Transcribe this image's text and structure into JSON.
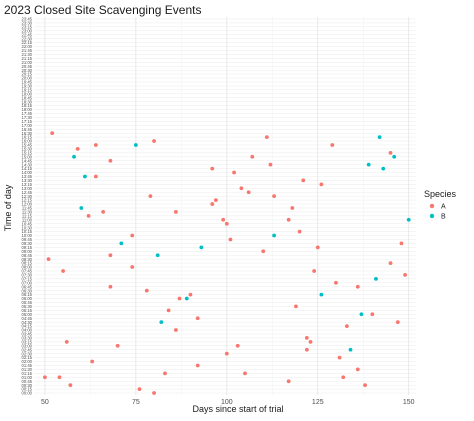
{
  "chart_data": {
    "type": "scatter",
    "title": "2023 Closed Site Scavenging Events",
    "xlabel": "Days since start of trial",
    "ylabel": "Time of day",
    "xlim": [
      47,
      152
    ],
    "x_ticks": [
      50,
      75,
      100,
      125,
      150
    ],
    "grid": true,
    "legend": {
      "title": "Species",
      "placement": "right",
      "entries": [
        {
          "label": "A",
          "color": "#F8766D"
        },
        {
          "label": "B",
          "color": "#00BFC4"
        }
      ]
    },
    "y_categories": [
      "00:00",
      "00:15",
      "00:30",
      "00:45",
      "01:00",
      "01:15",
      "01:30",
      "01:45",
      "02:00",
      "02:15",
      "02:30",
      "02:45",
      "03:00",
      "03:15",
      "03:30",
      "03:45",
      "04:00",
      "04:15",
      "04:30",
      "04:45",
      "05:00",
      "05:15",
      "05:30",
      "05:45",
      "06:00",
      "06:15",
      "06:30",
      "06:45",
      "07:00",
      "07:15",
      "07:30",
      "07:45",
      "08:00",
      "08:15",
      "08:30",
      "08:45",
      "09:00",
      "09:15",
      "09:30",
      "09:45",
      "10:00",
      "10:15",
      "10:30",
      "10:45",
      "11:00",
      "11:15",
      "11:30",
      "11:45",
      "12:00",
      "12:15",
      "12:30",
      "12:45",
      "13:00",
      "13:15",
      "13:30",
      "13:45",
      "14:00",
      "14:15",
      "14:30",
      "14:45",
      "15:00",
      "15:15",
      "15:30",
      "15:45",
      "16:00",
      "16:15",
      "16:30",
      "16:45",
      "17:00",
      "17:15",
      "17:30",
      "17:45",
      "18:00",
      "18:15",
      "18:30",
      "18:45",
      "19:00",
      "19:15",
      "19:30",
      "19:45",
      "20:00",
      "20:15",
      "20:30",
      "20:45",
      "21:00",
      "21:15",
      "21:30",
      "21:45",
      "22:00",
      "22:15",
      "22:30",
      "22:45",
      "23:00",
      "23:15",
      "23:30",
      "23:45"
    ],
    "series": [
      {
        "name": "A",
        "points": [
          {
            "x": 80,
            "y": "00:00"
          },
          {
            "x": 76,
            "y": "00:15"
          },
          {
            "x": 138,
            "y": "00:30"
          },
          {
            "x": 57,
            "y": "00:30"
          },
          {
            "x": 117,
            "y": "00:45"
          },
          {
            "x": 54,
            "y": "01:00"
          },
          {
            "x": 132,
            "y": "01:00"
          },
          {
            "x": 50,
            "y": "01:00"
          },
          {
            "x": 83,
            "y": "01:15"
          },
          {
            "x": 105,
            "y": "01:15"
          },
          {
            "x": 136,
            "y": "01:30"
          },
          {
            "x": 92,
            "y": "01:45"
          },
          {
            "x": 63,
            "y": "02:00"
          },
          {
            "x": 131,
            "y": "02:15"
          },
          {
            "x": 100,
            "y": "02:30"
          },
          {
            "x": 122,
            "y": "02:45"
          },
          {
            "x": 70,
            "y": "03:00"
          },
          {
            "x": 103,
            "y": "03:00"
          },
          {
            "x": 123,
            "y": "03:15"
          },
          {
            "x": 56,
            "y": "03:15"
          },
          {
            "x": 122,
            "y": "03:30"
          },
          {
            "x": 86,
            "y": "04:00"
          },
          {
            "x": 133,
            "y": "04:15"
          },
          {
            "x": 147,
            "y": "04:30"
          },
          {
            "x": 92,
            "y": "04:45"
          },
          {
            "x": 140,
            "y": "05:00"
          },
          {
            "x": 84,
            "y": "05:15"
          },
          {
            "x": 119,
            "y": "05:30"
          },
          {
            "x": 87,
            "y": "06:00"
          },
          {
            "x": 90,
            "y": "06:15"
          },
          {
            "x": 78,
            "y": "06:30"
          },
          {
            "x": 68,
            "y": "06:45"
          },
          {
            "x": 136,
            "y": "06:45"
          },
          {
            "x": 130,
            "y": "07:00"
          },
          {
            "x": 149,
            "y": "07:30"
          },
          {
            "x": 55,
            "y": "07:45"
          },
          {
            "x": 124,
            "y": "07:45"
          },
          {
            "x": 74,
            "y": "08:00"
          },
          {
            "x": 145,
            "y": "08:15"
          },
          {
            "x": 51,
            "y": "08:30"
          },
          {
            "x": 68,
            "y": "08:45"
          },
          {
            "x": 110,
            "y": "09:00"
          },
          {
            "x": 125,
            "y": "09:15"
          },
          {
            "x": 148,
            "y": "09:30"
          },
          {
            "x": 101,
            "y": "09:45"
          },
          {
            "x": 74,
            "y": "10:00"
          },
          {
            "x": 120,
            "y": "10:15"
          },
          {
            "x": 100,
            "y": "10:45"
          },
          {
            "x": 99,
            "y": "11:00"
          },
          {
            "x": 117,
            "y": "11:00"
          },
          {
            "x": 62,
            "y": "11:15"
          },
          {
            "x": 86,
            "y": "11:30"
          },
          {
            "x": 66,
            "y": "11:30"
          },
          {
            "x": 118,
            "y": "11:45"
          },
          {
            "x": 96,
            "y": "12:00"
          },
          {
            "x": 97,
            "y": "12:15"
          },
          {
            "x": 79,
            "y": "12:30"
          },
          {
            "x": 113,
            "y": "12:30"
          },
          {
            "x": 106,
            "y": "12:45"
          },
          {
            "x": 104,
            "y": "13:00"
          },
          {
            "x": 126,
            "y": "13:15"
          },
          {
            "x": 121,
            "y": "13:30"
          },
          {
            "x": 64,
            "y": "13:45"
          },
          {
            "x": 102,
            "y": "14:00"
          },
          {
            "x": 96,
            "y": "14:15"
          },
          {
            "x": 112,
            "y": "14:30"
          },
          {
            "x": 68,
            "y": "14:45"
          },
          {
            "x": 107,
            "y": "15:00"
          },
          {
            "x": 145,
            "y": "15:15"
          },
          {
            "x": 59,
            "y": "15:30"
          },
          {
            "x": 64,
            "y": "15:45"
          },
          {
            "x": 129,
            "y": "15:45"
          },
          {
            "x": 80,
            "y": "16:00"
          },
          {
            "x": 111,
            "y": "16:15"
          },
          {
            "x": 52,
            "y": "16:30"
          }
        ]
      },
      {
        "name": "B",
        "points": [
          {
            "x": 134,
            "y": "02:45"
          },
          {
            "x": 82,
            "y": "04:30"
          },
          {
            "x": 137,
            "y": "05:00"
          },
          {
            "x": 89,
            "y": "06:00"
          },
          {
            "x": 126,
            "y": "06:15"
          },
          {
            "x": 141,
            "y": "07:15"
          },
          {
            "x": 81,
            "y": "08:45"
          },
          {
            "x": 93,
            "y": "09:15"
          },
          {
            "x": 71,
            "y": "09:30"
          },
          {
            "x": 113,
            "y": "10:00"
          },
          {
            "x": 150,
            "y": "11:00"
          },
          {
            "x": 60,
            "y": "11:45"
          },
          {
            "x": 61,
            "y": "13:45"
          },
          {
            "x": 143,
            "y": "14:15"
          },
          {
            "x": 139,
            "y": "14:30"
          },
          {
            "x": 58,
            "y": "15:00"
          },
          {
            "x": 146,
            "y": "15:00"
          },
          {
            "x": 75,
            "y": "15:45"
          },
          {
            "x": 142,
            "y": "16:15"
          }
        ]
      }
    ]
  }
}
